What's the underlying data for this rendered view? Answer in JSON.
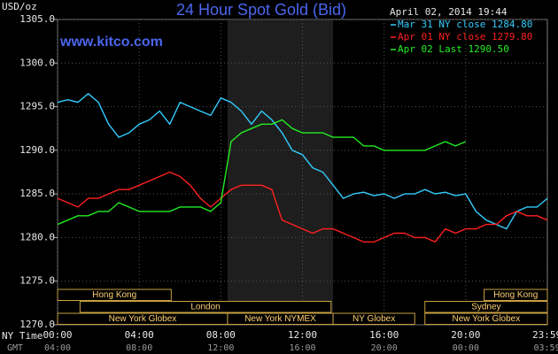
{
  "chart_data": {
    "type": "line",
    "title": "24 Hour Spot Gold (Bid)",
    "subtitle": "April 02, 2014 19:44",
    "annotation": "www.kitco.com",
    "ylabel": "USD/oz",
    "xlabel": "NY Time",
    "x2label": "GMT",
    "xlim": [
      0,
      24
    ],
    "xticks": [
      {
        "value": 0,
        "label": "00:00"
      },
      {
        "value": 4,
        "label": "04:00"
      },
      {
        "value": 8,
        "label": "08:00"
      },
      {
        "value": 12,
        "label": "12:00"
      },
      {
        "value": 16,
        "label": "16:00"
      },
      {
        "value": 20,
        "label": "20:00"
      },
      {
        "value": 23.98,
        "label": "23:59"
      }
    ],
    "x2ticks": [
      {
        "value": 0,
        "label": "04:00"
      },
      {
        "value": 4,
        "label": "08:00"
      },
      {
        "value": 8,
        "label": "12:00"
      },
      {
        "value": 12,
        "label": "16:00"
      },
      {
        "value": 16,
        "label": "20:00"
      },
      {
        "value": 20,
        "label": "00:00"
      },
      {
        "value": 23.98,
        "label": "03:59"
      }
    ],
    "ylim": [
      1270,
      1305
    ],
    "yticks": [
      {
        "value": 1270,
        "label": "1270.0"
      },
      {
        "value": 1275,
        "label": "1275.0"
      },
      {
        "value": 1280,
        "label": "1280.0"
      },
      {
        "value": 1285,
        "label": "1285.0"
      },
      {
        "value": 1290,
        "label": "1290.0"
      },
      {
        "value": 1295,
        "label": "1295.0"
      },
      {
        "value": 1300,
        "label": "1300.0"
      },
      {
        "value": 1305,
        "label": "1305.0"
      }
    ],
    "grid": true,
    "shaded_hours": [
      8.33,
      13.5
    ],
    "x": [
      0,
      0.5,
      1,
      1.5,
      2,
      2.5,
      3,
      3.5,
      4,
      4.5,
      5,
      5.5,
      6,
      6.5,
      7,
      7.5,
      8,
      8.5,
      9,
      9.5,
      10,
      10.5,
      11,
      11.5,
      12,
      12.5,
      13,
      13.5,
      14,
      14.5,
      15,
      15.5,
      16,
      16.5,
      17,
      17.5,
      18,
      18.5,
      19,
      19.5,
      20,
      20.5,
      21,
      21.5,
      22,
      22.5,
      23,
      23.5,
      24
    ],
    "series": [
      {
        "name": "Mar 31 NY close 1284.80",
        "color": "#33ccff",
        "values": [
          1295.5,
          1295.8,
          1295.5,
          1296.5,
          1295.5,
          1293,
          1291.5,
          1292,
          1293,
          1293.5,
          1294.5,
          1293,
          1295.5,
          1295,
          1294.5,
          1294,
          1296,
          1295.5,
          1294.5,
          1293,
          1294.5,
          1293.5,
          1292,
          1290,
          1289.5,
          1288,
          1287.5,
          1286,
          1284.5,
          1285,
          1285.2,
          1284.8,
          1285,
          1284.5,
          1285,
          1285,
          1285.5,
          1285,
          1285.2,
          1284.8,
          1285,
          1283,
          1282,
          1281.5,
          1281,
          1283,
          1283.5,
          1283.5,
          1284.5
        ]
      },
      {
        "name": "Apr 01 NY close 1279.80",
        "color": "#ff2020",
        "values": [
          1284.5,
          1284,
          1283.5,
          1284.5,
          1284.5,
          1285,
          1285.5,
          1285.5,
          1286,
          1286.5,
          1287,
          1287.5,
          1287,
          1286,
          1284.5,
          1283.5,
          1284.5,
          1285.5,
          1286,
          1286,
          1286,
          1285.5,
          1282,
          1281.5,
          1281,
          1280.5,
          1281,
          1281,
          1280.5,
          1280,
          1279.5,
          1279.5,
          1280,
          1280.5,
          1280.5,
          1280,
          1280,
          1279.5,
          1281,
          1280.5,
          1281,
          1281,
          1281.5,
          1281.5,
          1282.5,
          1283,
          1282.5,
          1282.5,
          1282
        ]
      },
      {
        "name": "Apr 02 Last 1290.50",
        "color": "#22ee22",
        "values": [
          1281.5,
          1282,
          1282.5,
          1282.5,
          1283,
          1283,
          1284,
          1283.5,
          1283,
          1283,
          1283,
          1283,
          1283.5,
          1283.5,
          1283.5,
          1283,
          1284,
          1291,
          1292,
          1292.5,
          1293,
          1293,
          1293.5,
          1292.5,
          1292,
          1292,
          1292,
          1291.5,
          1291.5,
          1291.5,
          1290.5,
          1290.5,
          1290,
          1290,
          1290,
          1290,
          1290,
          1290.5,
          1291,
          1290.5,
          1291,
          null,
          null,
          null,
          null,
          null,
          null,
          null,
          null
        ]
      }
    ],
    "sessions": [
      {
        "label": "Hong Kong",
        "row": 0,
        "start": 0,
        "end": 5.57
      },
      {
        "label": "Hong Kong",
        "row": 0,
        "start": 20.9,
        "end": 24
      },
      {
        "label": "London",
        "row": 1,
        "start": 1.1,
        "end": 13.4
      },
      {
        "label": "Sydney",
        "row": 1,
        "start": 18,
        "end": 24
      },
      {
        "label": "New York Globex",
        "row": 2,
        "start": 0,
        "end": 8.33
      },
      {
        "label": "New York NYMEX",
        "row": 2,
        "start": 8.33,
        "end": 13.5
      },
      {
        "label": "NY Globex",
        "row": 2,
        "start": 13.5,
        "end": 17.5
      },
      {
        "label": "New York Globex",
        "row": 2,
        "start": 18,
        "end": 24
      }
    ]
  }
}
